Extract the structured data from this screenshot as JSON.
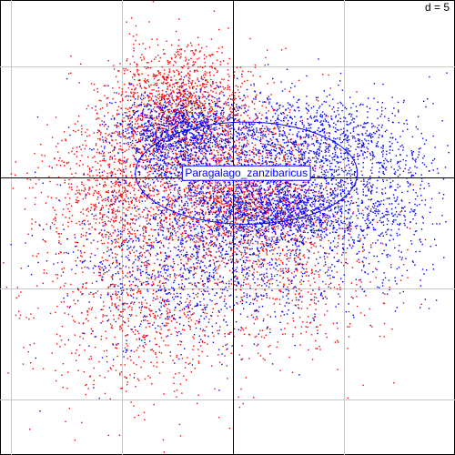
{
  "chart_data": {
    "type": "scatter",
    "grid": true,
    "grid_step": 5,
    "scale_label": "d = 5",
    "xlim": [
      -10.5,
      10
    ],
    "ylim": [
      -12.5,
      8
    ],
    "label": "Paragalago_zanzibaricus",
    "ellipse": {
      "cx": 0.6,
      "cy": 0.2,
      "rx": 5.0,
      "ry": 2.3
    },
    "series": [
      {
        "color": "#ff0000",
        "point_count": 5200,
        "clusters": [
          {
            "cx": -2.5,
            "cy": 3.5,
            "sx": 1.6,
            "sy": 1.3,
            "w": 0.22
          },
          {
            "cx": -5.5,
            "cy": -0.5,
            "sx": 1.6,
            "sy": 1.6,
            "w": 0.15
          },
          {
            "cx": 0.0,
            "cy": -1.0,
            "sx": 2.0,
            "sy": 1.4,
            "w": 0.25
          },
          {
            "cx": -4.0,
            "cy": -5.5,
            "sx": 2.5,
            "sy": 2.3,
            "w": 0.18
          },
          {
            "cx": 3.0,
            "cy": -4.0,
            "sx": 2.0,
            "sy": 2.0,
            "w": 0.1
          },
          {
            "cx": -1.0,
            "cy": 1.5,
            "sx": 2.5,
            "sy": 1.6,
            "w": 0.1
          }
        ]
      },
      {
        "color": "#0000ff",
        "point_count": 6000,
        "clusters": [
          {
            "cx": -2.5,
            "cy": 2.0,
            "sx": 1.4,
            "sy": 0.9,
            "w": 0.18
          },
          {
            "cx": 2.5,
            "cy": -1.5,
            "sx": 2.0,
            "sy": 0.8,
            "w": 0.18
          },
          {
            "cx": 4.0,
            "cy": 1.5,
            "sx": 2.3,
            "sy": 1.2,
            "w": 0.16
          },
          {
            "cx": -1.5,
            "cy": -4.0,
            "sx": 3.0,
            "sy": 1.8,
            "w": 0.2
          },
          {
            "cx": 6.5,
            "cy": -1.5,
            "sx": 1.5,
            "sy": 2.0,
            "w": 0.08
          },
          {
            "cx": 0.0,
            "cy": 0.0,
            "sx": 2.8,
            "sy": 1.8,
            "w": 0.2
          }
        ]
      }
    ]
  }
}
